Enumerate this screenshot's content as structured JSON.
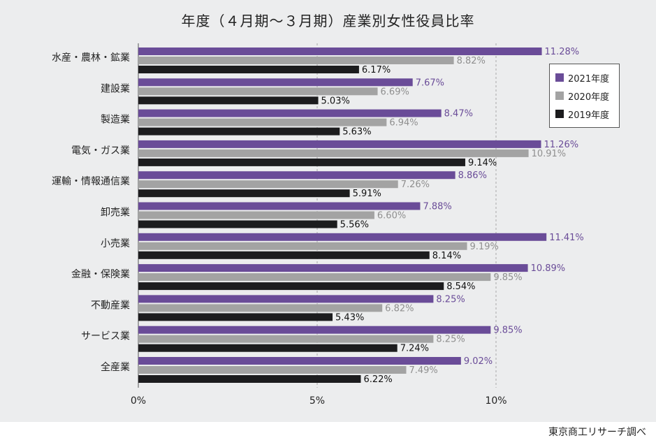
{
  "title": "年度（４月期～３月期）産業別女性役員比率",
  "source": "東京商工リサーチ調べ",
  "colors": {
    "y2021": "#6a4c98",
    "y2020": "#a3a3a3",
    "y2019": "#1c1c1e",
    "background": "#ecedee"
  },
  "chart_data": {
    "type": "bar",
    "orientation": "horizontal",
    "title": "年度（４月期～３月期）産業別女性役員比率",
    "categories": [
      "水産・農林・鉱業",
      "建設業",
      "製造業",
      "電気・ガス業",
      "運輸・情報通信業",
      "卸売業",
      "小売業",
      "金融・保険業",
      "不動産業",
      "サービス業",
      "全産業"
    ],
    "series": [
      {
        "name": "2021年度",
        "values": [
          11.28,
          7.67,
          8.47,
          11.26,
          8.86,
          7.88,
          11.41,
          10.89,
          8.25,
          9.85,
          9.02
        ],
        "labels": [
          "11.28%",
          "7.67%",
          "8.47%",
          "11.26%",
          "8.86%",
          "7.88%",
          "11.41%",
          "10.89%",
          "8.25%",
          "9.85%",
          "9.02%"
        ]
      },
      {
        "name": "2020年度",
        "values": [
          8.82,
          6.69,
          6.94,
          10.91,
          7.26,
          6.6,
          9.19,
          9.85,
          6.82,
          8.25,
          7.49
        ],
        "labels": [
          "8.82%",
          "6.69%",
          "6.94%",
          "10.91%",
          "7.26%",
          "6.60%",
          "9.19%",
          "9.85%",
          "6.82%",
          "8.25%",
          "7.49%"
        ]
      },
      {
        "name": "2019年度",
        "values": [
          6.17,
          5.03,
          5.63,
          9.14,
          5.91,
          5.56,
          8.14,
          8.54,
          5.43,
          7.24,
          6.22
        ],
        "labels": [
          "6.17%",
          "5.03%",
          "5.63%",
          "9.14%",
          "5.91%",
          "5.56%",
          "8.14%",
          "8.54%",
          "5.43%",
          "7.24%",
          "6.22%"
        ]
      }
    ],
    "xlim": [
      0,
      12.5
    ],
    "xticks": [
      0,
      5,
      10
    ],
    "xtick_labels": [
      "0%",
      "5%",
      "10%"
    ],
    "grid": "vertical dashed at 5% and 10%",
    "legend": "top-right"
  }
}
